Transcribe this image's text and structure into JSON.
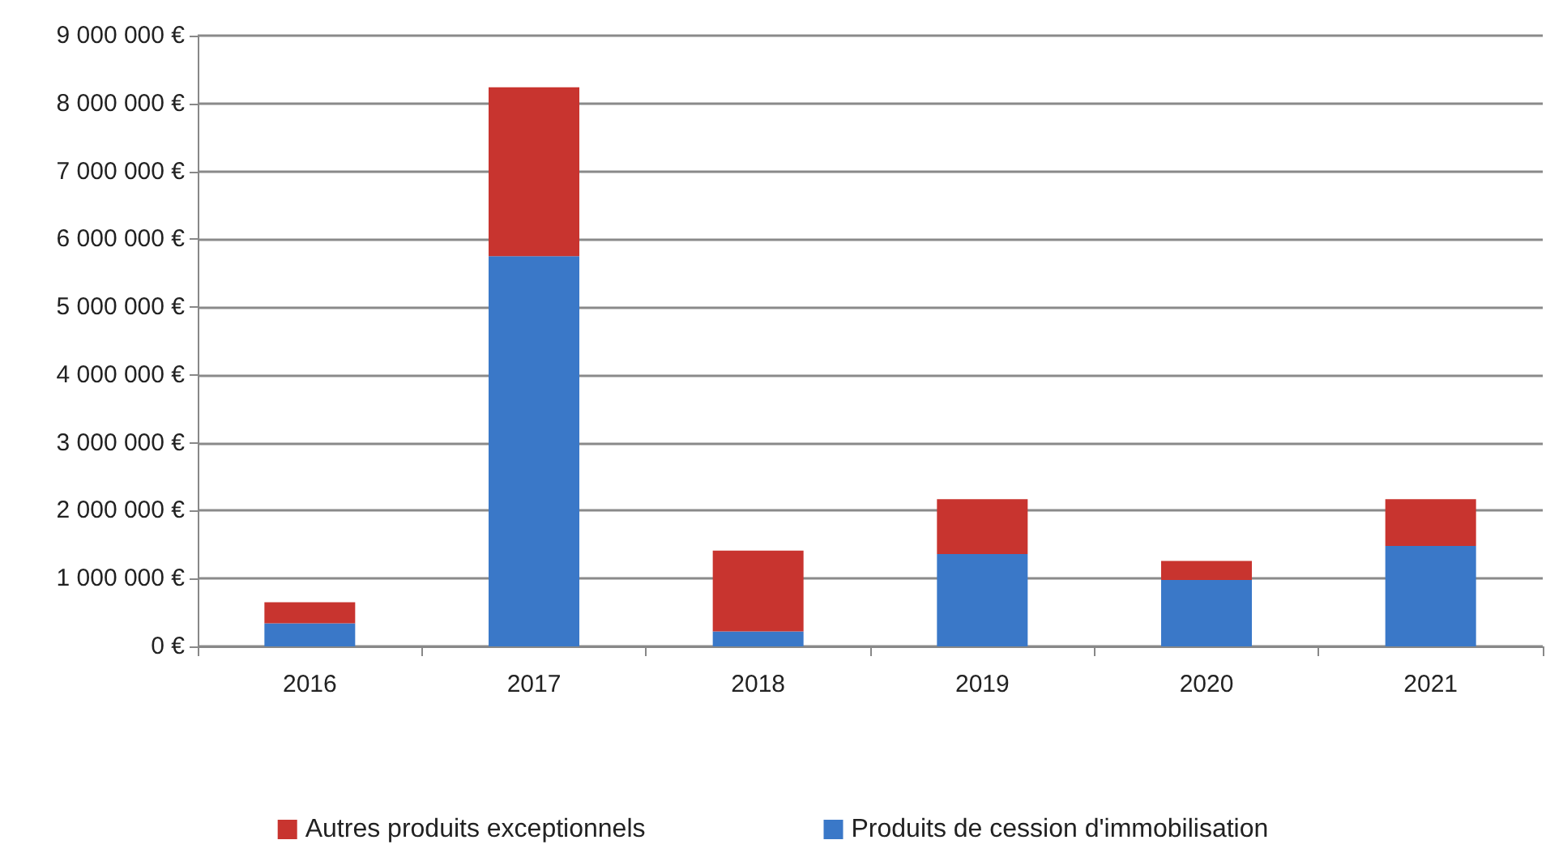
{
  "chart_data": {
    "type": "bar",
    "stacked": true,
    "categories": [
      "2016",
      "2017",
      "2018",
      "2019",
      "2020",
      "2021"
    ],
    "series": [
      {
        "name": "Produits de cession d'immobilisation",
        "color": "#3a78c8",
        "values": [
          340000,
          5750000,
          220000,
          1360000,
          980000,
          1480000
        ]
      },
      {
        "name": "Autres produits exceptionnels",
        "color": "#c8342f",
        "values": [
          310000,
          2490000,
          1190000,
          810000,
          280000,
          690000
        ]
      }
    ],
    "ylim": [
      0,
      9000000
    ],
    "yticks": [
      {
        "value": 0,
        "label": "0 €"
      },
      {
        "value": 1000000,
        "label": "1 000 000 €"
      },
      {
        "value": 2000000,
        "label": "2 000 000 €"
      },
      {
        "value": 3000000,
        "label": "3 000 000 €"
      },
      {
        "value": 4000000,
        "label": "4 000 000 €"
      },
      {
        "value": 5000000,
        "label": "5 000 000 €"
      },
      {
        "value": 6000000,
        "label": "6 000 000 €"
      },
      {
        "value": 7000000,
        "label": "7 000 000 €"
      },
      {
        "value": 8000000,
        "label": "8 000 000 €"
      },
      {
        "value": 9000000,
        "label": "9 000 000 €"
      }
    ],
    "grid": "y",
    "legend": "bottom"
  }
}
